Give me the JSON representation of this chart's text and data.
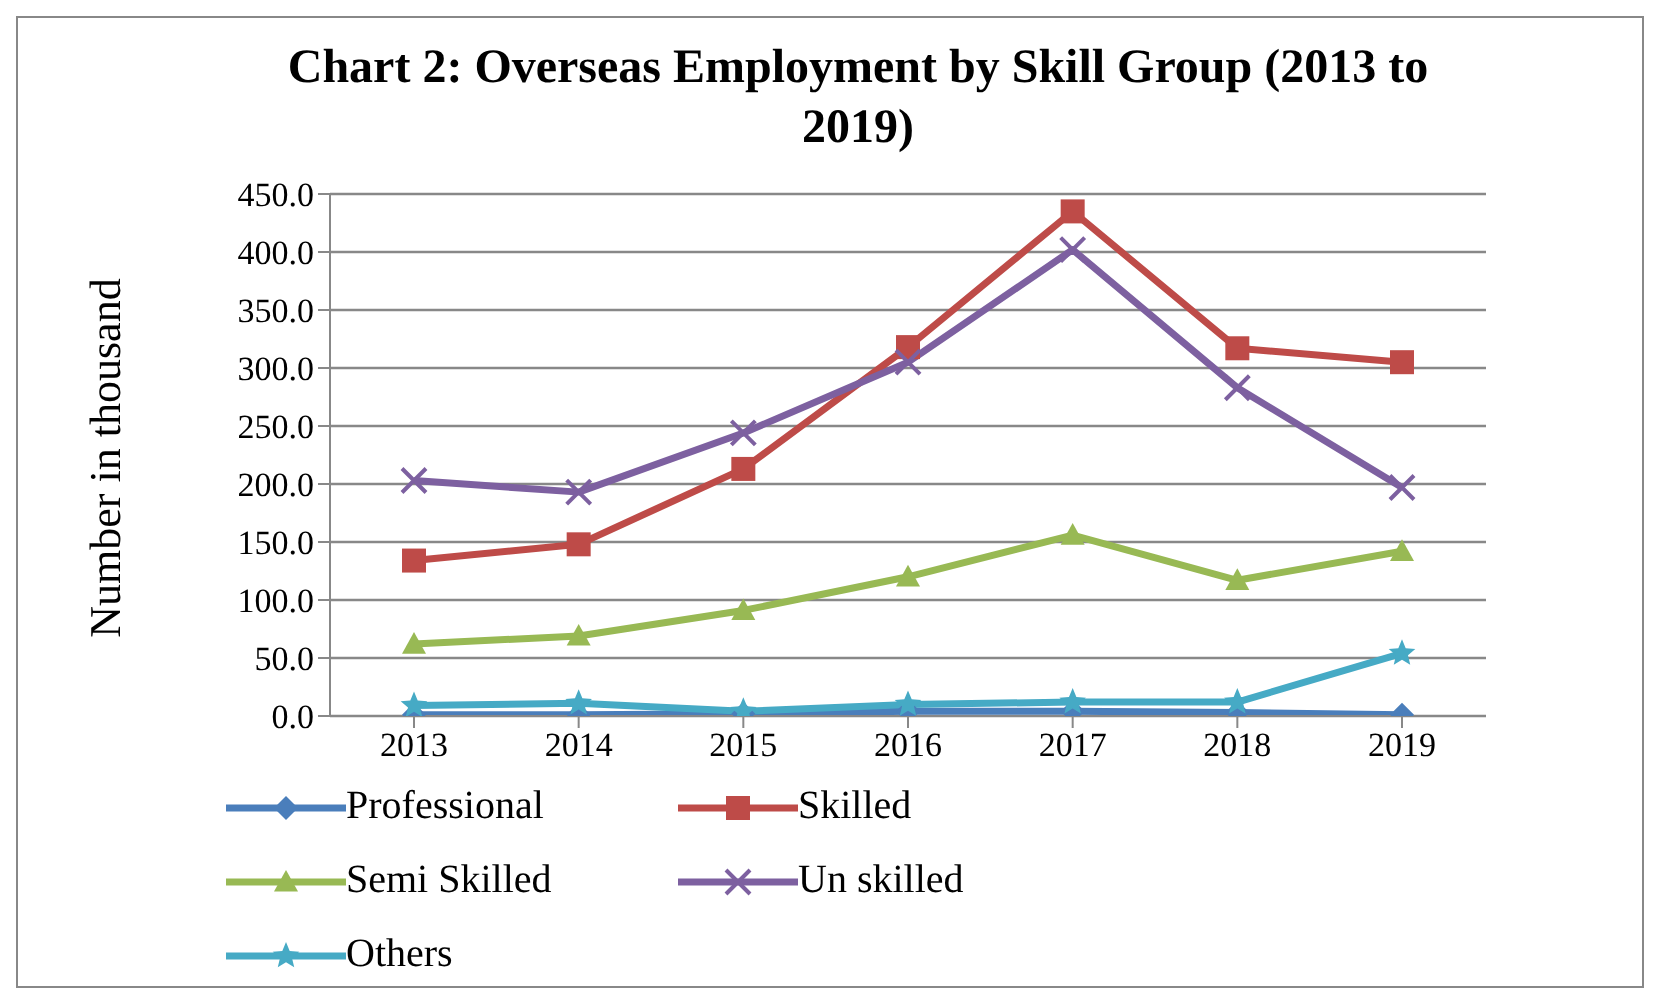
{
  "chart_data": {
    "type": "line",
    "title": "Chart 2: Overseas Employment by Skill Group (2013 to 2019)",
    "ylabel": "Number in thousand",
    "categories": [
      "2013",
      "2014",
      "2015",
      "2016",
      "2017",
      "2018",
      "2019"
    ],
    "series": [
      {
        "name": "Professional",
        "color": "#4a7ebb",
        "marker": "diamond",
        "values": [
          1,
          1,
          2,
          4,
          4,
          3,
          1
        ]
      },
      {
        "name": "Skilled",
        "color": "#be4b48",
        "marker": "square",
        "values": [
          134,
          148,
          213,
          318,
          435,
          317,
          305
        ]
      },
      {
        "name": "Semi Skilled",
        "color": "#98b954",
        "marker": "triangle",
        "values": [
          62,
          69,
          91,
          120,
          156,
          117,
          142
        ]
      },
      {
        "name": "Un skilled",
        "color": "#7d60a0",
        "marker": "cross",
        "values": [
          203,
          193,
          244,
          305,
          402,
          283,
          197
        ]
      },
      {
        "name": "Others",
        "color": "#46aac5",
        "marker": "star",
        "values": [
          9,
          11,
          4,
          10,
          12,
          12,
          54
        ]
      }
    ],
    "ylim": [
      0,
      450
    ],
    "yticks": [
      {
        "value": 0,
        "label": "0.0"
      },
      {
        "value": 50,
        "label": "50.0"
      },
      {
        "value": 100,
        "label": "100.0"
      },
      {
        "value": 150,
        "label": "150.0"
      },
      {
        "value": 200,
        "label": "200.0"
      },
      {
        "value": 250,
        "label": "250.0"
      },
      {
        "value": 300,
        "label": "300.0"
      },
      {
        "value": 350,
        "label": "350.0"
      },
      {
        "value": 400,
        "label": "400.0"
      },
      {
        "value": 450,
        "label": "450.0"
      }
    ],
    "grid": "y",
    "legend": "bottom",
    "line_style": "solid"
  }
}
